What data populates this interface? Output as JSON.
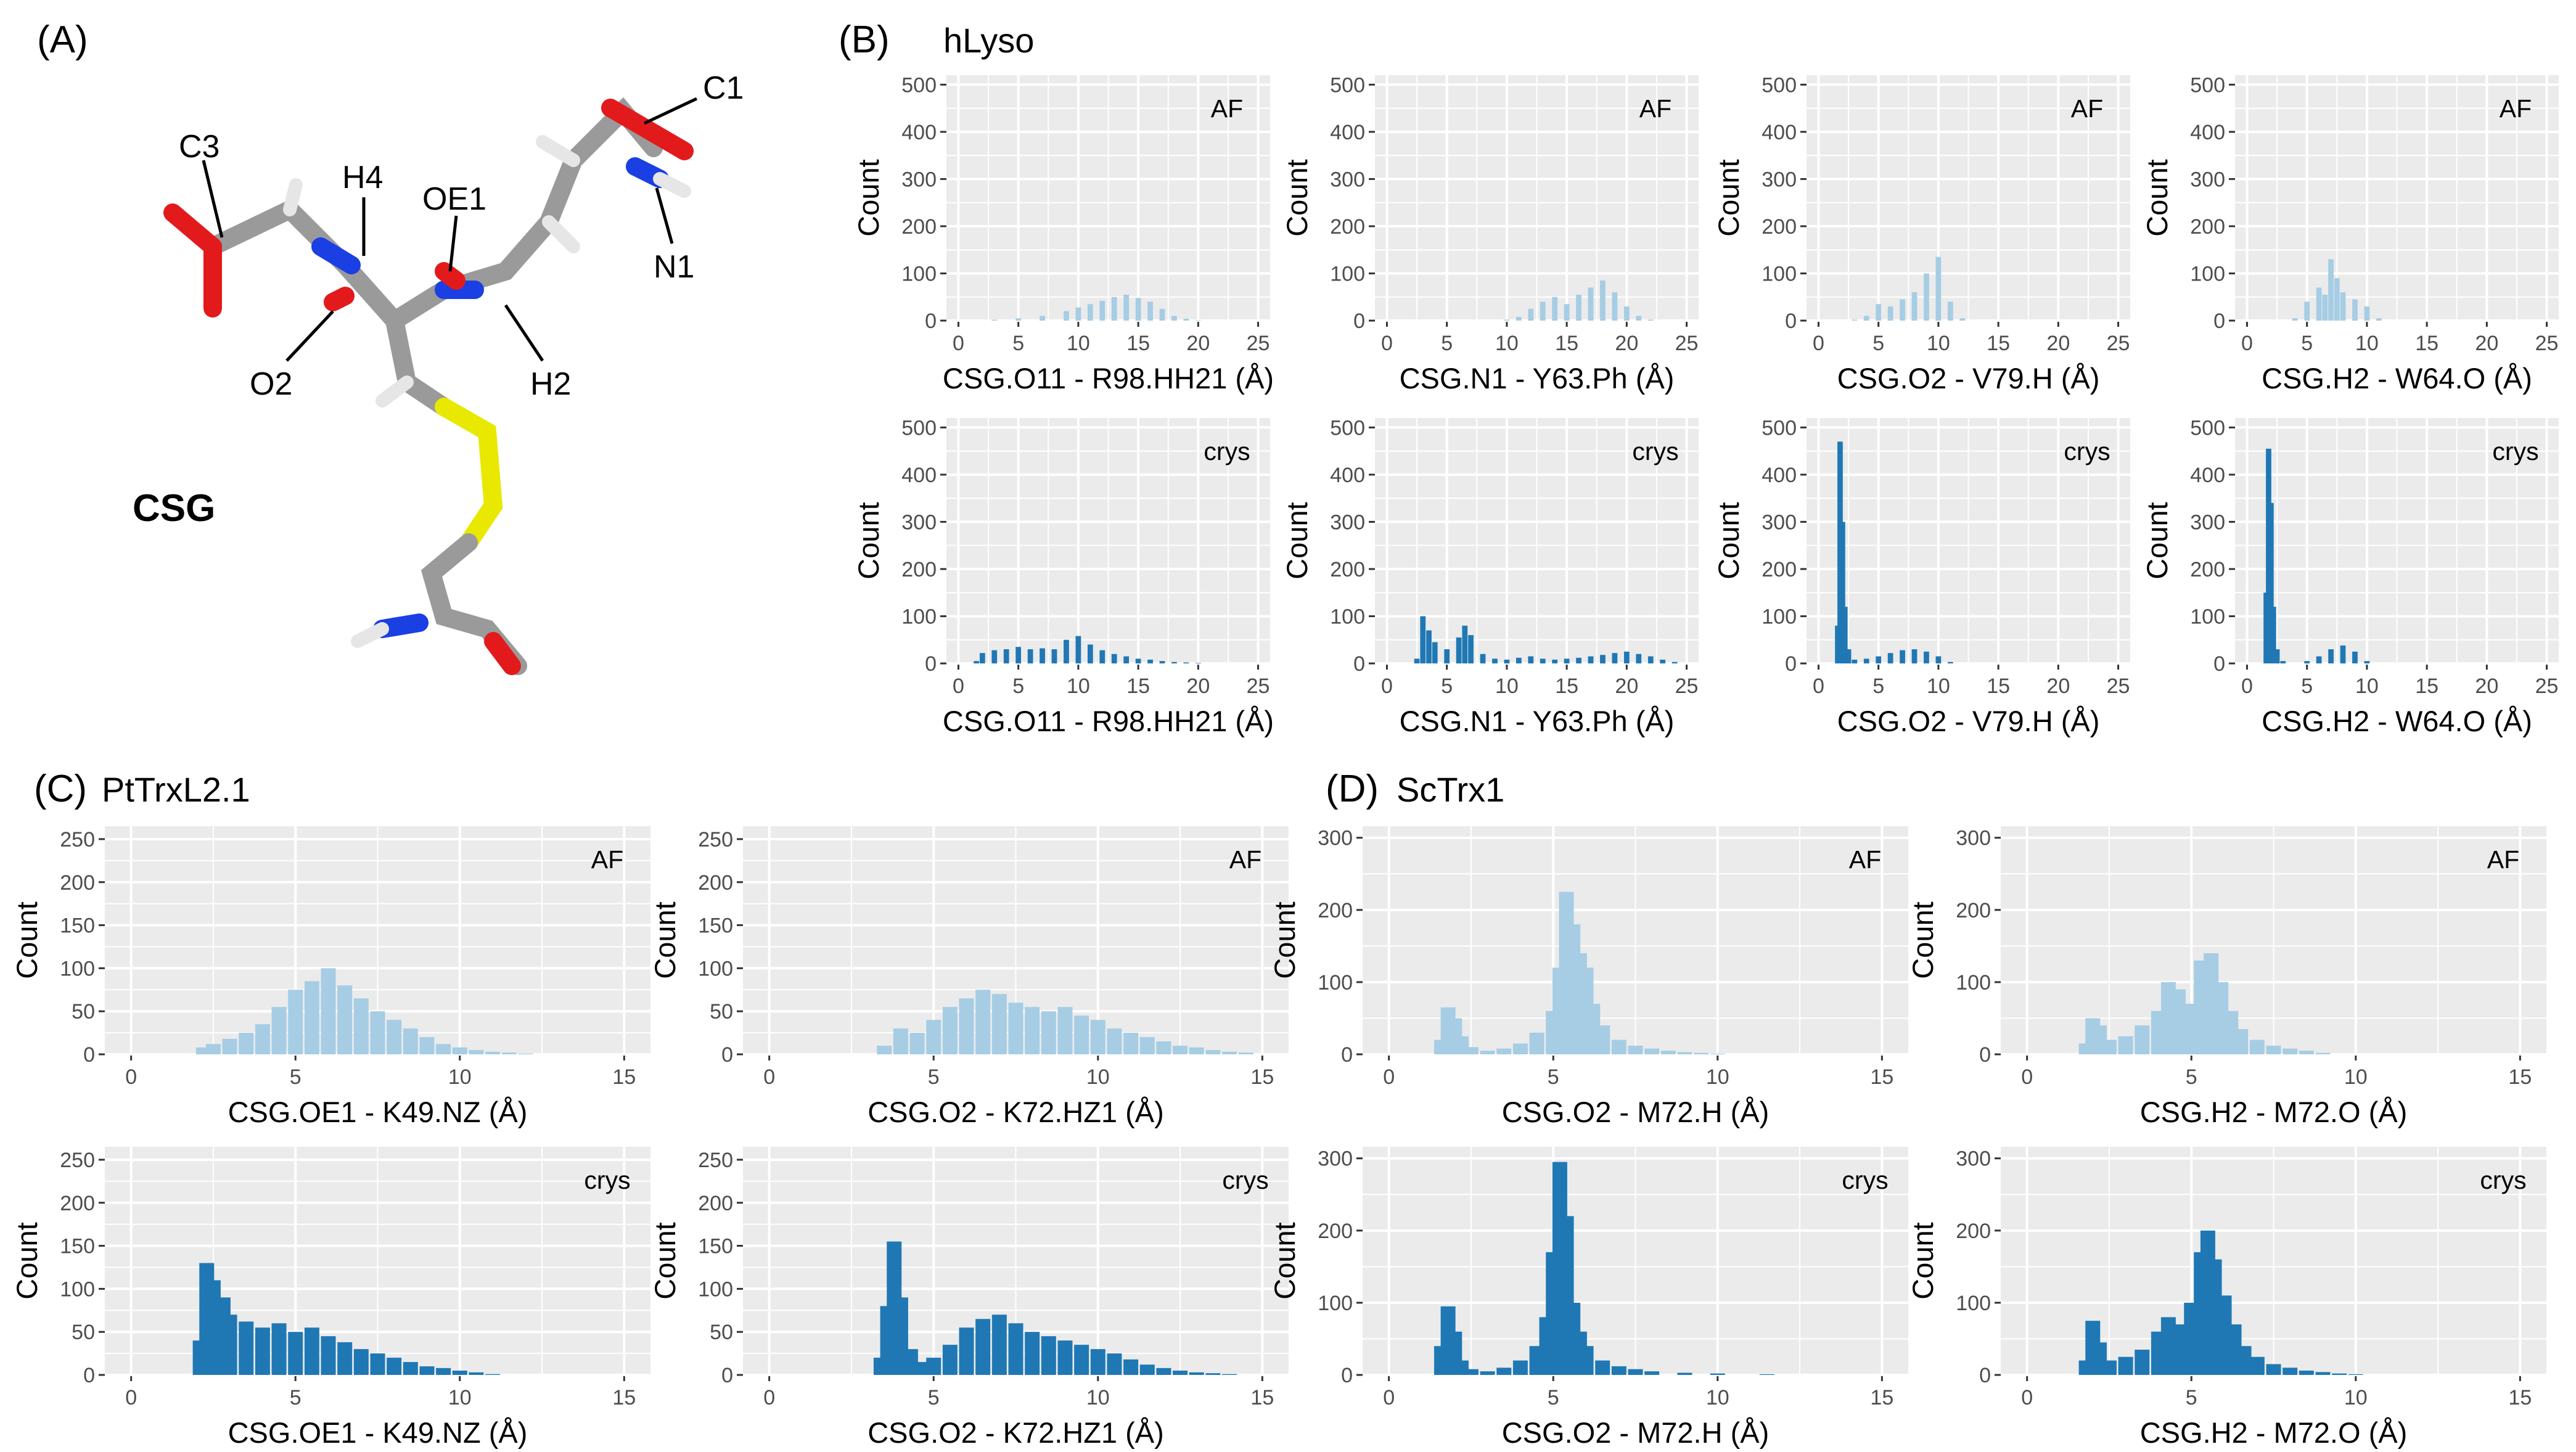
{
  "panel_a": {
    "tag": "(A)",
    "molecule": "CSG",
    "atom_labels": [
      "C1",
      "C3",
      "H4",
      "OE1",
      "N1",
      "O2",
      "H2"
    ]
  },
  "panel_b": {
    "tag": "(B)",
    "protein": "hLyso"
  },
  "panel_c": {
    "tag": "(C)",
    "protein": "PtTrxL2.1"
  },
  "panel_d": {
    "tag": "(D)",
    "protein": "ScTrx1"
  },
  "colors": {
    "af": "#a6cde4",
    "crys": "#1f78b4",
    "panel_bg": "#ebebeb",
    "grid": "#ffffff"
  },
  "chart_data": [
    {
      "id": "b-af-1",
      "type": "bar",
      "group": "hLyso",
      "condition": "AF",
      "title": "AF",
      "xlabel": "CSG.O11 - R98.HH21 (Å)",
      "ylabel": "Count",
      "xlim": [
        -1,
        26
      ],
      "ylim": [
        0,
        520
      ],
      "xticks": [
        0,
        5,
        10,
        15,
        20,
        25
      ],
      "yticks": [
        0,
        100,
        200,
        300,
        400,
        500
      ],
      "x": [
        3,
        5,
        7,
        9,
        10,
        11,
        12,
        13,
        14,
        15,
        16,
        17,
        18,
        19,
        20
      ],
      "values": [
        2,
        5,
        10,
        20,
        28,
        35,
        42,
        50,
        55,
        48,
        40,
        25,
        10,
        4,
        1
      ]
    },
    {
      "id": "b-crys-1",
      "type": "bar",
      "group": "hLyso",
      "condition": "crys",
      "title": "crys",
      "xlabel": "CSG.O11 - R98.HH21 (Å)",
      "ylabel": "Count",
      "xlim": [
        -1,
        26
      ],
      "ylim": [
        0,
        520
      ],
      "xticks": [
        0,
        5,
        10,
        15,
        20,
        25
      ],
      "yticks": [
        0,
        100,
        200,
        300,
        400,
        500
      ],
      "x": [
        1.5,
        2,
        3,
        4,
        5,
        6,
        7,
        8,
        9,
        10,
        11,
        12,
        13,
        14,
        15,
        16,
        17,
        18,
        19,
        20
      ],
      "values": [
        5,
        22,
        28,
        30,
        35,
        30,
        32,
        30,
        50,
        58,
        40,
        28,
        20,
        15,
        10,
        8,
        5,
        3,
        2,
        1
      ]
    },
    {
      "id": "b-af-2",
      "type": "bar",
      "group": "hLyso",
      "condition": "AF",
      "title": "AF",
      "xlabel": "CSG.N1 - Y63.Ph (Å)",
      "ylabel": "Count",
      "xlim": [
        -1,
        26
      ],
      "ylim": [
        0,
        520
      ],
      "xticks": [
        0,
        5,
        10,
        15,
        20,
        25
      ],
      "yticks": [
        0,
        100,
        200,
        300,
        400,
        500
      ],
      "x": [
        10,
        11,
        12,
        13,
        14,
        15,
        16,
        17,
        18,
        19,
        20,
        21,
        22
      ],
      "values": [
        2,
        8,
        25,
        40,
        50,
        35,
        55,
        70,
        85,
        60,
        30,
        10,
        2
      ]
    },
    {
      "id": "b-crys-2",
      "type": "bar",
      "group": "hLyso",
      "condition": "crys",
      "title": "crys",
      "xlabel": "CSG.N1 - Y63.Ph (Å)",
      "ylabel": "Count",
      "xlim": [
        -1,
        26
      ],
      "ylim": [
        0,
        520
      ],
      "xticks": [
        0,
        5,
        10,
        15,
        20,
        25
      ],
      "yticks": [
        0,
        100,
        200,
        300,
        400,
        500
      ],
      "x": [
        2.5,
        3,
        3.5,
        4,
        5,
        6,
        6.5,
        7,
        8,
        9,
        10,
        11,
        12,
        13,
        14,
        15,
        16,
        17,
        18,
        19,
        20,
        21,
        22,
        23,
        24
      ],
      "values": [
        10,
        100,
        70,
        45,
        30,
        55,
        80,
        60,
        20,
        10,
        8,
        12,
        15,
        10,
        8,
        10,
        12,
        15,
        18,
        22,
        25,
        20,
        15,
        8,
        3
      ]
    },
    {
      "id": "b-af-3",
      "type": "bar",
      "group": "hLyso",
      "condition": "AF",
      "title": "AF",
      "xlabel": "CSG.O2 - V79.H (Å)",
      "ylabel": "Count",
      "xlim": [
        -1,
        26
      ],
      "ylim": [
        0,
        520
      ],
      "xticks": [
        0,
        5,
        10,
        15,
        20,
        25
      ],
      "yticks": [
        0,
        100,
        200,
        300,
        400,
        500
      ],
      "x": [
        3,
        4,
        5,
        6,
        7,
        8,
        9,
        10,
        11,
        12
      ],
      "values": [
        2,
        10,
        35,
        30,
        45,
        60,
        100,
        135,
        40,
        5
      ]
    },
    {
      "id": "b-crys-3",
      "type": "bar",
      "group": "hLyso",
      "condition": "crys",
      "title": "crys",
      "xlabel": "CSG.O2 - V79.H (Å)",
      "ylabel": "Count",
      "xlim": [
        -1,
        26
      ],
      "ylim": [
        0,
        520
      ],
      "xticks": [
        0,
        5,
        10,
        15,
        20,
        25
      ],
      "yticks": [
        0,
        100,
        200,
        300,
        400,
        500
      ],
      "x": [
        1.6,
        1.8,
        2,
        2.2,
        2.5,
        3,
        4,
        5,
        6,
        7,
        8,
        9,
        10,
        11
      ],
      "values": [
        80,
        470,
        300,
        120,
        30,
        8,
        10,
        15,
        22,
        28,
        30,
        25,
        15,
        3
      ]
    },
    {
      "id": "b-af-4",
      "type": "bar",
      "group": "hLyso",
      "condition": "AF",
      "title": "AF",
      "xlabel": "CSG.H2 - W64.O (Å)",
      "ylabel": "Count",
      "xlim": [
        -1,
        26
      ],
      "ylim": [
        0,
        520
      ],
      "xticks": [
        0,
        5,
        10,
        15,
        20,
        25
      ],
      "yticks": [
        0,
        100,
        200,
        300,
        400,
        500
      ],
      "x": [
        4,
        5,
        6,
        6.5,
        7,
        7.5,
        8,
        9,
        10,
        11
      ],
      "values": [
        5,
        40,
        70,
        55,
        130,
        90,
        60,
        45,
        30,
        5
      ]
    },
    {
      "id": "b-crys-4",
      "type": "bar",
      "group": "hLyso",
      "condition": "crys",
      "title": "crys",
      "xlabel": "CSG.H2 - W64.O (Å)",
      "ylabel": "Count",
      "xlim": [
        -1,
        26
      ],
      "ylim": [
        0,
        520
      ],
      "xticks": [
        0,
        5,
        10,
        15,
        20,
        25
      ],
      "yticks": [
        0,
        100,
        200,
        300,
        400,
        500
      ],
      "x": [
        1.6,
        1.8,
        2,
        2.2,
        2.5,
        3,
        5,
        6,
        7,
        8,
        9,
        10
      ],
      "values": [
        150,
        455,
        340,
        120,
        30,
        5,
        5,
        15,
        30,
        38,
        25,
        5
      ]
    },
    {
      "id": "c-af-1",
      "type": "bar",
      "group": "PtTrxL2.1",
      "condition": "AF",
      "title": "AF",
      "xlabel": "CSG.OE1 - K49.NZ (Å)",
      "ylabel": "Count",
      "xlim": [
        -0.8,
        15.8
      ],
      "ylim": [
        0,
        265
      ],
      "xticks": [
        0,
        5,
        10,
        15
      ],
      "yticks": [
        0,
        50,
        100,
        150,
        200,
        250
      ],
      "x": [
        2.2,
        2.5,
        3,
        3.5,
        4,
        4.5,
        5,
        5.5,
        6,
        6.5,
        7,
        7.5,
        8,
        8.5,
        9,
        9.5,
        10,
        10.5,
        11,
        11.5,
        12
      ],
      "values": [
        8,
        12,
        18,
        25,
        35,
        55,
        75,
        85,
        100,
        80,
        65,
        50,
        40,
        30,
        20,
        12,
        8,
        5,
        3,
        2,
        1
      ]
    },
    {
      "id": "c-crys-1",
      "type": "bar",
      "group": "PtTrxL2.1",
      "condition": "crys",
      "title": "crys",
      "xlabel": "CSG.OE1 - K49.NZ (Å)",
      "ylabel": "Count",
      "xlim": [
        -0.8,
        15.8
      ],
      "ylim": [
        0,
        265
      ],
      "xticks": [
        0,
        5,
        10,
        15
      ],
      "yticks": [
        0,
        50,
        100,
        150,
        200,
        250
      ],
      "x": [
        2.1,
        2.3,
        2.5,
        2.8,
        3,
        3.5,
        4,
        4.5,
        5,
        5.5,
        6,
        6.5,
        7,
        7.5,
        8,
        8.5,
        9,
        9.5,
        10,
        10.5,
        11
      ],
      "values": [
        40,
        130,
        110,
        90,
        70,
        62,
        55,
        60,
        50,
        55,
        45,
        38,
        30,
        25,
        20,
        15,
        10,
        8,
        5,
        3,
        1
      ]
    },
    {
      "id": "c-af-2",
      "type": "bar",
      "group": "PtTrxL2.1",
      "condition": "AF",
      "title": "AF",
      "xlabel": "CSG.O2 - K72.HZ1 (Å)",
      "ylabel": "Count",
      "xlim": [
        -0.8,
        15.8
      ],
      "ylim": [
        0,
        265
      ],
      "xticks": [
        0,
        5,
        10,
        15
      ],
      "yticks": [
        0,
        50,
        100,
        150,
        200,
        250
      ],
      "x": [
        3.5,
        4,
        4.5,
        5,
        5.5,
        6,
        6.5,
        7,
        7.5,
        8,
        8.5,
        9,
        9.5,
        10,
        10.5,
        11,
        11.5,
        12,
        12.5,
        13,
        13.5,
        14,
        14.5
      ],
      "values": [
        10,
        30,
        25,
        40,
        55,
        65,
        75,
        70,
        60,
        55,
        50,
        55,
        45,
        40,
        30,
        25,
        20,
        15,
        10,
        8,
        5,
        3,
        2
      ]
    },
    {
      "id": "c-crys-2",
      "type": "bar",
      "group": "PtTrxL2.1",
      "condition": "crys",
      "title": "crys",
      "xlabel": "CSG.O2 - K72.HZ1 (Å)",
      "ylabel": "Count",
      "xlim": [
        -0.8,
        15.8
      ],
      "ylim": [
        0,
        265
      ],
      "xticks": [
        0,
        5,
        10,
        15
      ],
      "yticks": [
        0,
        50,
        100,
        150,
        200,
        250
      ],
      "x": [
        3.4,
        3.6,
        3.8,
        4,
        4.3,
        4.6,
        5,
        5.5,
        6,
        6.5,
        7,
        7.5,
        8,
        8.5,
        9,
        9.5,
        10,
        10.5,
        11,
        11.5,
        12,
        12.5,
        13,
        13.5,
        14
      ],
      "values": [
        20,
        80,
        155,
        90,
        30,
        15,
        20,
        35,
        55,
        65,
        70,
        60,
        50,
        45,
        40,
        35,
        30,
        25,
        18,
        12,
        8,
        5,
        3,
        2,
        1
      ]
    },
    {
      "id": "d-af-1",
      "type": "bar",
      "group": "ScTrx1",
      "condition": "AF",
      "title": "AF",
      "xlabel": "CSG.O2 - M72.H (Å)",
      "ylabel": "Count",
      "xlim": [
        -0.8,
        15.8
      ],
      "ylim": [
        0,
        316
      ],
      "xticks": [
        0,
        5,
        10,
        15
      ],
      "yticks": [
        0,
        100,
        200,
        300
      ],
      "x": [
        1.6,
        1.8,
        2,
        2.2,
        2.5,
        3,
        3.5,
        4,
        4.5,
        5,
        5.2,
        5.4,
        5.6,
        5.8,
        6,
        6.2,
        6.5,
        7,
        7.5,
        8,
        8.5,
        9,
        9.5,
        10
      ],
      "values": [
        20,
        65,
        50,
        25,
        10,
        5,
        8,
        15,
        30,
        60,
        120,
        225,
        180,
        140,
        120,
        70,
        40,
        20,
        12,
        8,
        5,
        3,
        2,
        1
      ]
    },
    {
      "id": "d-crys-1",
      "type": "bar",
      "group": "ScTrx1",
      "condition": "crys",
      "title": "crys",
      "xlabel": "CSG.O2 - M72.H (Å)",
      "ylabel": "Count",
      "xlim": [
        -0.8,
        15.8
      ],
      "ylim": [
        0,
        316
      ],
      "xticks": [
        0,
        5,
        10,
        15
      ],
      "yticks": [
        0,
        100,
        200,
        300
      ],
      "x": [
        1.6,
        1.8,
        2,
        2.2,
        2.5,
        3,
        3.5,
        4,
        4.5,
        4.8,
        5,
        5.2,
        5.4,
        5.6,
        5.8,
        6,
        6.5,
        7,
        7.5,
        8,
        9,
        10,
        11.5
      ],
      "values": [
        40,
        95,
        60,
        20,
        8,
        5,
        10,
        20,
        40,
        80,
        170,
        295,
        220,
        100,
        60,
        40,
        20,
        12,
        8,
        5,
        3,
        2,
        1
      ]
    },
    {
      "id": "d-af-2",
      "type": "bar",
      "group": "ScTrx1",
      "condition": "AF",
      "title": "AF",
      "xlabel": "CSG.H2 - M72.O (Å)",
      "ylabel": "Count",
      "xlim": [
        -0.8,
        15.8
      ],
      "ylim": [
        0,
        316
      ],
      "xticks": [
        0,
        5,
        10,
        15
      ],
      "yticks": [
        0,
        100,
        200,
        300
      ],
      "x": [
        1.8,
        2,
        2.2,
        2.5,
        3,
        3.5,
        4,
        4.3,
        4.6,
        5,
        5.3,
        5.6,
        5.9,
        6.2,
        6.5,
        7,
        7.5,
        8,
        8.5,
        9
      ],
      "values": [
        15,
        50,
        40,
        20,
        25,
        40,
        60,
        100,
        90,
        70,
        130,
        140,
        100,
        60,
        35,
        20,
        12,
        8,
        5,
        2
      ]
    },
    {
      "id": "d-crys-2",
      "type": "bar",
      "group": "ScTrx1",
      "condition": "crys",
      "title": "crys",
      "xlabel": "CSG.H2 - M72.O (Å)",
      "ylabel": "Count",
      "xlim": [
        -0.8,
        15.8
      ],
      "ylim": [
        0,
        316
      ],
      "xticks": [
        0,
        5,
        10,
        15
      ],
      "yticks": [
        0,
        100,
        200,
        300
      ],
      "x": [
        1.8,
        2,
        2.2,
        2.5,
        3,
        3.5,
        4,
        4.3,
        4.6,
        5,
        5.3,
        5.5,
        5.7,
        6,
        6.3,
        6.6,
        7,
        7.5,
        8,
        8.5,
        9,
        9.5,
        10
      ],
      "values": [
        20,
        75,
        45,
        20,
        25,
        35,
        60,
        80,
        70,
        100,
        170,
        200,
        160,
        110,
        70,
        40,
        25,
        15,
        10,
        6,
        4,
        2,
        1
      ]
    }
  ]
}
